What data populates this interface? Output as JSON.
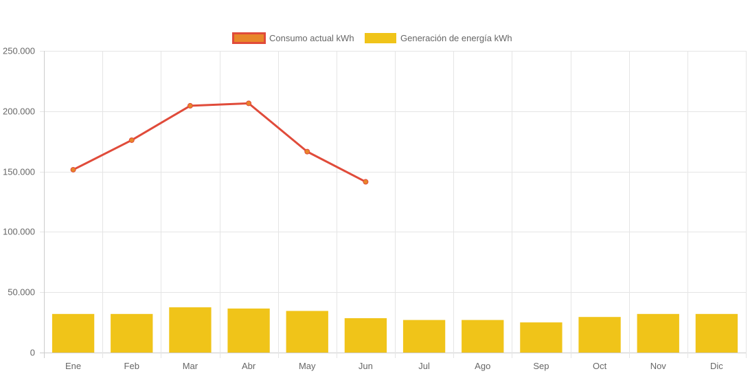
{
  "chart_data": {
    "type": "bar",
    "categories": [
      "Ene",
      "Feb",
      "Mar",
      "Abr",
      "May",
      "Jun",
      "Jul",
      "Ago",
      "Sep",
      "Oct",
      "Nov",
      "Dic"
    ],
    "series": [
      {
        "name": "Consumo actual kWh",
        "kind": "line",
        "values": [
          151500,
          176000,
          204500,
          206500,
          166500,
          141500,
          null,
          null,
          null,
          null,
          null,
          null
        ],
        "color": "#e04b3a",
        "point_color": "#e8862a"
      },
      {
        "name": "Generación de energía kWh",
        "kind": "bar",
        "values": [
          32000,
          32000,
          37500,
          36500,
          34500,
          28500,
          27000,
          27000,
          25000,
          29500,
          32000,
          32000
        ],
        "color": "#f0c419"
      }
    ],
    "ylim": [
      0,
      250000
    ],
    "yticks": [
      0,
      50000,
      100000,
      150000,
      200000,
      250000
    ],
    "ytick_labels": [
      "0",
      "50.000",
      "100.000",
      "150.000",
      "200.000",
      "250.000"
    ],
    "legend": [
      {
        "label": "Consumo actual kWh",
        "fill": "#e8862a",
        "stroke": "#e04b3a"
      },
      {
        "label": "Generación de energía kWh",
        "fill": "#f0c419",
        "stroke": "#f0c419"
      }
    ],
    "legend_position": "top",
    "grid": true,
    "colors": {
      "grid": "#e5e5e5",
      "axis": "#cccccc",
      "text": "#666666"
    }
  }
}
